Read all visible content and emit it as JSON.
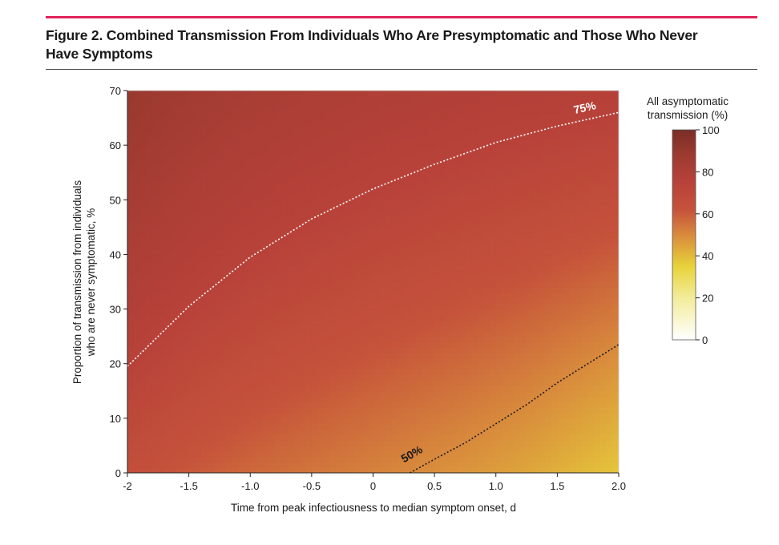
{
  "figure": {
    "title_line1": "Figure 2. Combined Transmission From Individuals Who Are Presymptomatic and Those Who Never",
    "title_line2": "Have Symptoms",
    "accent_color": "#e2245a"
  },
  "chart_data": {
    "type": "heatmap",
    "xlabel": "Time from peak infectiousness to median symptom onset, d",
    "ylabel_line1": "Proportion of transmission from individuals",
    "ylabel_line2": "who are never symptomatic, %",
    "xlim": [
      -2,
      2
    ],
    "ylim": [
      0,
      70
    ],
    "x_ticks": [
      -2,
      -1.5,
      -1.0,
      -0.5,
      0,
      0.5,
      1.0,
      1.5,
      2.0
    ],
    "x_tick_labels": [
      "-2",
      "-1.5",
      "-1.0",
      "-0.5",
      "0",
      "0.5",
      "1.0",
      "1.5",
      "2.0"
    ],
    "y_ticks": [
      0,
      10,
      20,
      30,
      40,
      50,
      60,
      70
    ],
    "y_tick_labels": [
      "0",
      "10",
      "20",
      "30",
      "40",
      "50",
      "60",
      "70"
    ],
    "colorbar": {
      "title_line1": "All asymptomatic",
      "title_line2": "transmission (%)",
      "range": [
        0,
        100
      ],
      "ticks": [
        0,
        20,
        40,
        60,
        80,
        100
      ],
      "tick_labels": [
        "0",
        "20",
        "40",
        "60",
        "80",
        "100"
      ],
      "color_stops": [
        {
          "value": 0,
          "color": "#ffffff"
        },
        {
          "value": 20,
          "color": "#f3ec9a"
        },
        {
          "value": 35,
          "color": "#e8d23a"
        },
        {
          "value": 50,
          "color": "#d88a3c"
        },
        {
          "value": 62,
          "color": "#c5523b"
        },
        {
          "value": 75,
          "color": "#b8423a"
        },
        {
          "value": 88,
          "color": "#9c3a30"
        },
        {
          "value": 100,
          "color": "#7a2e26"
        }
      ]
    },
    "contours": [
      {
        "label": "75%",
        "level": 75,
        "color": "#ffffff",
        "x": [
          -2.0,
          -1.5,
          -1.0,
          -0.5,
          0.0,
          0.5,
          1.0,
          1.5,
          2.0
        ],
        "y": [
          19.5,
          30.5,
          39.5,
          46.5,
          52.0,
          56.5,
          60.5,
          63.5,
          66.0
        ]
      },
      {
        "label": "50%",
        "level": 50,
        "color": "#1a1a1a",
        "x": [
          0.3,
          0.5,
          0.75,
          1.0,
          1.25,
          1.5,
          1.75,
          2.0
        ],
        "y": [
          0.0,
          2.5,
          5.5,
          9.0,
          12.5,
          16.5,
          20.0,
          23.5
        ]
      }
    ]
  }
}
